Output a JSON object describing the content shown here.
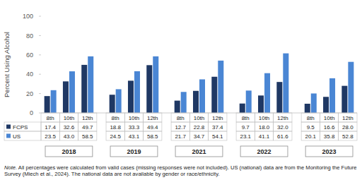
{
  "chart_data": {
    "type": "bar",
    "y_label": "Percent Using Alcohol",
    "categories": [
      "8th",
      "10th",
      "12th",
      "8th",
      "10th",
      "12th",
      "8th",
      "10th",
      "12th",
      "8th",
      "10th",
      "12th",
      "8th",
      "10th",
      "12th"
    ],
    "group_labels": [
      "2018",
      "2019",
      "2021",
      "2022",
      "2023"
    ],
    "series": [
      {
        "name": "FCPS",
        "color": "#1f3864",
        "values": [
          17.4,
          32.6,
          49.7,
          18.8,
          33.3,
          49.4,
          12.7,
          22.8,
          37.4,
          9.7,
          18.0,
          32.0,
          9.5,
          16.6,
          28.0
        ],
        "value_labels": [
          "17.4",
          "32.6",
          "49.7",
          "18.8",
          "33.3",
          "49.4",
          "12.7",
          "22.8",
          "37.4",
          "9.7",
          "18.0",
          "32.0",
          "9.5",
          "16.6",
          "28.0"
        ]
      },
      {
        "name": "US",
        "color": "#4a86d4",
        "values": [
          23.5,
          43.0,
          58.5,
          24.5,
          43.1,
          58.5,
          21.7,
          34.7,
          54.1,
          23.1,
          41.1,
          61.6,
          20.1,
          35.8,
          52.8
        ],
        "value_labels": [
          "23.5",
          "43.0",
          "58.5",
          "24.5",
          "43.1",
          "58.5",
          "21.7",
          "34.7",
          "54.1",
          "23.1",
          "41.1",
          "61.6",
          "20.1",
          "35.8",
          "52.8"
        ]
      }
    ],
    "ylim": [
      0,
      100
    ],
    "yticks": [
      0,
      20,
      40,
      60,
      80,
      100
    ],
    "grid": false,
    "note_label": "Note.",
    "note": "All percentages were calculated from valid cases (missing responses were not included). US (national) data are from the Monitoring the Future Survey (Miech et al., 2024). The national data are not available by gender or race/ethnicity."
  }
}
